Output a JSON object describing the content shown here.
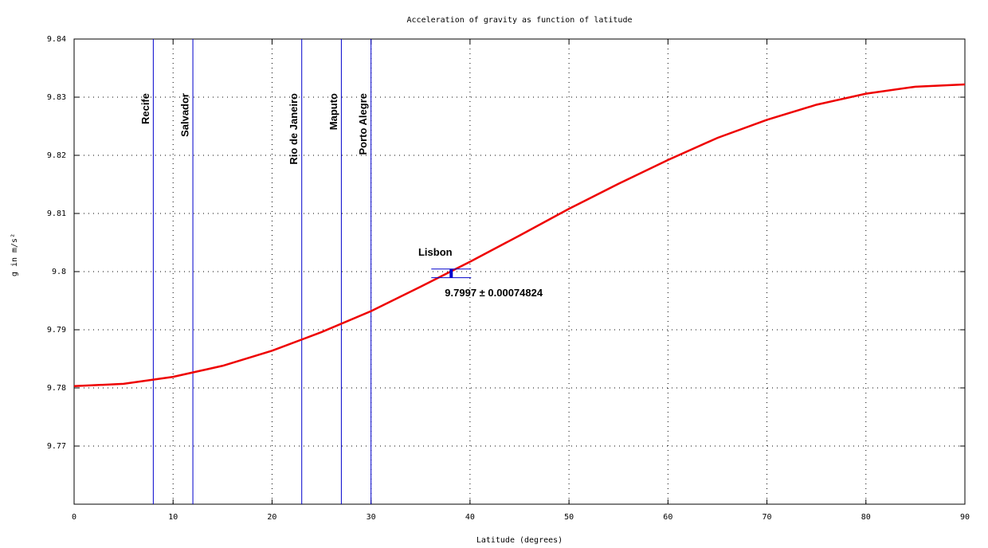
{
  "chart_data": {
    "type": "line",
    "title": "Acceleration of gravity as function of latitude",
    "xlabel": "Latitude (degrees)",
    "ylabel": "g in m/s²",
    "x": [
      0,
      5,
      10,
      15,
      20,
      25,
      30,
      35,
      40,
      45,
      50,
      55,
      60,
      65,
      70,
      75,
      80,
      85,
      90
    ],
    "values": [
      9.7803,
      9.7807,
      9.7819,
      9.7838,
      9.7864,
      9.7896,
      9.7932,
      9.7974,
      9.8017,
      9.8062,
      9.8108,
      9.8151,
      9.8192,
      9.823,
      9.8261,
      9.8287,
      9.8306,
      9.8318,
      9.8322
    ],
    "color": "#ee0000",
    "xlim": [
      0,
      90
    ],
    "xticks": [
      0,
      10,
      20,
      30,
      40,
      50,
      60,
      70,
      80,
      90
    ],
    "ylim": [
      9.76,
      9.84
    ],
    "yticks": [
      9.77,
      9.78,
      9.79,
      9.8,
      9.81,
      9.82,
      9.83,
      9.84
    ],
    "grid": true,
    "markers": {
      "color": "#0000cc",
      "items": [
        {
          "label": "Recife",
          "x": 8
        },
        {
          "label": "Salvador",
          "x": 12
        },
        {
          "label": "Rio de Janeiro",
          "x": 23
        },
        {
          "label": "Maputo",
          "x": 27
        },
        {
          "label": "Porto Alegre",
          "x": 30
        }
      ]
    },
    "point": {
      "label": "Lisbon",
      "x": 38.1,
      "value": 9.7997,
      "error": 0.00074824,
      "value_label": "9.7997 ± 0.00074824",
      "color": "#0000cc"
    }
  }
}
